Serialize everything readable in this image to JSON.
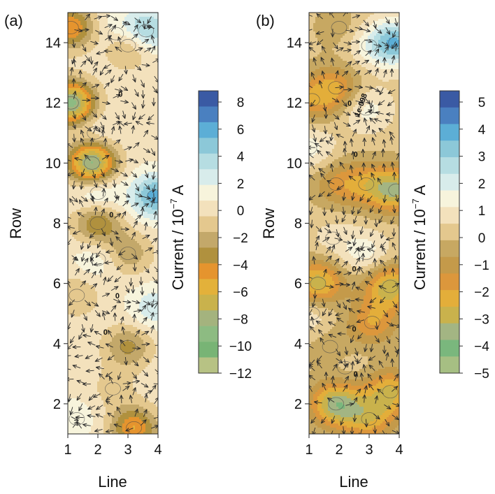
{
  "chart_data": [
    {
      "type": "contour",
      "panel_label": "(a)",
      "xlabel": "Line",
      "ylabel": "Row",
      "xlim": [
        1,
        4
      ],
      "ylim": [
        1,
        15
      ],
      "x_ticks": [
        1,
        2,
        3,
        4
      ],
      "y_ticks": [
        2,
        4,
        6,
        8,
        10,
        12,
        14
      ],
      "colorbar": {
        "label": "Current / 10",
        "label_exp": "−7",
        "label_unit": " A",
        "ticks": [
          "8",
          "6",
          "4",
          "2",
          "0",
          "−2",
          "−4",
          "−6",
          "−8",
          "−10",
          "−12"
        ],
        "range": [
          -12,
          9
        ]
      },
      "contour_labels": [
        {
          "text": "0",
          "x": 2.75,
          "y": 12.2
        },
        {
          "text": "0",
          "x": 2.45,
          "y": 8.2
        },
        {
          "text": "0",
          "x": 2.65,
          "y": 5.5
        },
        {
          "text": "0",
          "x": 2.25,
          "y": 4.3
        }
      ],
      "extrema": [
        {
          "x": 1.1,
          "y": 12.0,
          "value": -9
        },
        {
          "x": 1.8,
          "y": 10.0,
          "value": -9
        },
        {
          "x": 1.9,
          "y": 11.0,
          "value": 1.5
        },
        {
          "x": 3.9,
          "y": 8.9,
          "value": 6
        },
        {
          "x": 3.6,
          "y": 14.4,
          "value": 5
        },
        {
          "x": 2.6,
          "y": 14.3,
          "value": 2
        },
        {
          "x": 2.0,
          "y": 9.0,
          "value": 3
        },
        {
          "x": 2.0,
          "y": 8.0,
          "value": -4
        },
        {
          "x": 3.0,
          "y": 13.9,
          "value": -3
        },
        {
          "x": 1.1,
          "y": 14.5,
          "value": -5
        },
        {
          "x": 2.0,
          "y": 6.8,
          "value": 2
        },
        {
          "x": 3.0,
          "y": 7.0,
          "value": -2.5
        },
        {
          "x": 3.9,
          "y": 5.2,
          "value": 3
        },
        {
          "x": 3.0,
          "y": 3.9,
          "value": -3
        },
        {
          "x": 3.2,
          "y": 1.2,
          "value": -5
        },
        {
          "x": 1.3,
          "y": 1.5,
          "value": 1.5
        },
        {
          "x": 1.3,
          "y": 5.6,
          "value": -1.5
        },
        {
          "x": 2.5,
          "y": 2.5,
          "value": -0.8
        }
      ]
    },
    {
      "type": "contour",
      "panel_label": "(b)",
      "xlabel": "Line",
      "ylabel": "Row",
      "xlim": [
        1,
        4
      ],
      "ylim": [
        1,
        15
      ],
      "x_ticks": [
        1,
        2,
        3,
        4
      ],
      "y_ticks": [
        2,
        4,
        6,
        8,
        10,
        12,
        14
      ],
      "colorbar": {
        "label": "Current / 10",
        "label_exp": "−7",
        "label_unit": " A",
        "ticks": [
          "5",
          "4",
          "3",
          "2",
          "1",
          "0",
          "−1",
          "−2",
          "−3",
          "−4",
          "−5"
        ],
        "range": [
          -5,
          5.5
        ]
      },
      "contour_labels": [
        {
          "text": "0",
          "x": 2.35,
          "y": 11.9
        },
        {
          "text": "1e-098",
          "x": 2.8,
          "y": 11.9
        },
        {
          "text": "0",
          "x": 2.55,
          "y": 10.2
        },
        {
          "text": "0",
          "x": 2.5,
          "y": 6.4
        },
        {
          "text": "0",
          "x": 2.5,
          "y": 4.4
        },
        {
          "text": "0",
          "x": 2.55,
          "y": 2.9
        }
      ],
      "extrema": [
        {
          "x": 1.9,
          "y": 12.5,
          "value": -1.8
        },
        {
          "x": 1.1,
          "y": 12.1,
          "value": -1.5
        },
        {
          "x": 3.9,
          "y": 14.0,
          "value": 3.5
        },
        {
          "x": 2.9,
          "y": 11.8,
          "value": 1.5
        },
        {
          "x": 1.0,
          "y": 10.5,
          "value": 1.5
        },
        {
          "x": 3.9,
          "y": 9.1,
          "value": -3
        },
        {
          "x": 2.9,
          "y": 9.3,
          "value": -1.5
        },
        {
          "x": 1.9,
          "y": 9.3,
          "value": -1.2
        },
        {
          "x": 2.9,
          "y": 7.0,
          "value": 1.5
        },
        {
          "x": 1.8,
          "y": 7.5,
          "value": 0.8
        },
        {
          "x": 1.3,
          "y": 6.0,
          "value": -3
        },
        {
          "x": 3.7,
          "y": 5.9,
          "value": -3
        },
        {
          "x": 1.1,
          "y": 5.0,
          "value": 1.2
        },
        {
          "x": 3.1,
          "y": 4.7,
          "value": -1.8
        },
        {
          "x": 1.7,
          "y": 3.9,
          "value": -0.6
        },
        {
          "x": 2.2,
          "y": 3.2,
          "value": 0.6
        },
        {
          "x": 1.9,
          "y": 2.0,
          "value": -3.5
        },
        {
          "x": 3.7,
          "y": 2.4,
          "value": -2.5
        },
        {
          "x": 3.0,
          "y": 1.5,
          "value": -2
        },
        {
          "x": 3.0,
          "y": 13.9,
          "value": 1.2
        },
        {
          "x": 2.0,
          "y": 14.5,
          "value": -0.5
        }
      ]
    }
  ]
}
